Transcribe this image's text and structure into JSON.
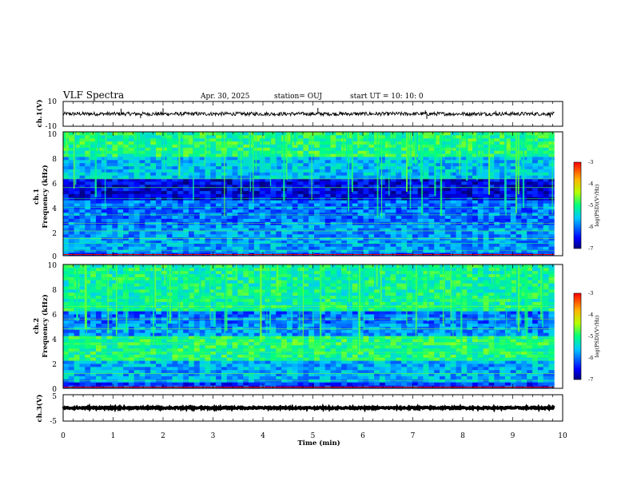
{
  "header": {
    "title": "VLF Spectra",
    "date": "Apr. 30, 2025",
    "station": "station= OUJ",
    "start_ut": "start  UT  =   10: 10: 0"
  },
  "colors": {
    "trace": "#000000",
    "colormap_low": "#00007f",
    "colormap_mid": "#00ff7f",
    "colormap_high": "#ff0000",
    "spectrogram_floor": "#000000"
  },
  "chart_data": [
    {
      "type": "line",
      "id": "ch1-waveform",
      "ylabel": "ch.1(V)",
      "ylim": [
        -10,
        10
      ],
      "ytick_labels": [
        "10",
        "-10"
      ],
      "xlim": [
        0,
        10
      ],
      "baseline": 0,
      "noise_amplitude": 1.5,
      "spikes": [
        {
          "x": 1.16,
          "y": 4.2
        },
        {
          "x": 1.55,
          "y": -3.5
        },
        {
          "x": 2.0,
          "y": 4.5
        },
        {
          "x": 5.1,
          "y": 4.8
        },
        {
          "x": 7.25,
          "y": 2.8
        },
        {
          "x": 7.28,
          "y": -4.0
        },
        {
          "x": 8.66,
          "y": 2.5
        },
        {
          "x": 9.75,
          "y": -3.0
        }
      ],
      "data_end_x": 9.83
    },
    {
      "type": "heatmap",
      "id": "ch1-spectrogram",
      "ylabel_line1": "ch.1",
      "ylabel_line2": "Frequency (kHz)",
      "ylim": [
        0,
        10
      ],
      "ytick_labels": [
        "0",
        "2",
        "4",
        "6",
        "8",
        "10"
      ],
      "xlim": [
        0,
        10
      ],
      "data_end_x": 9.83,
      "colorbar": {
        "label": "log(PSD)(V²/Hz)",
        "ticks": [
          "-3",
          "-4",
          "-5",
          "-6",
          "-7"
        ],
        "range": [
          -7,
          -3
        ]
      },
      "bands": [
        {
          "f": [
            0,
            0.3
          ],
          "level": -6.2
        },
        {
          "f": [
            0.3,
            2.5
          ],
          "level": -5.8
        },
        {
          "f": [
            2.5,
            4.6
          ],
          "level": -6.0
        },
        {
          "f": [
            4.6,
            6.3
          ],
          "level": -6.6
        },
        {
          "f": [
            6.3,
            8.0
          ],
          "level": -5.6
        },
        {
          "f": [
            8.0,
            10.0
          ],
          "level": -5.0
        }
      ],
      "lines_khz": [
        0.4,
        1.0,
        1.4,
        2.0,
        2.6,
        3.3,
        3.9,
        4.6,
        5.5,
        6.2
      ]
    },
    {
      "type": "heatmap",
      "id": "ch2-spectrogram",
      "ylabel_line1": "ch.2",
      "ylabel_line2": "Frequency (kHz)",
      "ylim": [
        0,
        10
      ],
      "ytick_labels": [
        "0",
        "2",
        "4",
        "6",
        "8",
        "10"
      ],
      "xlim": [
        0,
        10
      ],
      "data_end_x": 9.83,
      "colorbar": {
        "label": "log(PSD)(V²/Hz)",
        "ticks": [
          "-3",
          "-4",
          "-5",
          "-6",
          "-7"
        ],
        "range": [
          -7,
          -3
        ]
      },
      "bands": [
        {
          "f": [
            0,
            0.5
          ],
          "level": -6.3
        },
        {
          "f": [
            0.5,
            2.2
          ],
          "level": -5.7
        },
        {
          "f": [
            2.2,
            4.2
          ],
          "level": -5.0
        },
        {
          "f": [
            4.2,
            5.2
          ],
          "level": -5.8
        },
        {
          "f": [
            5.2,
            6.3
          ],
          "level": -6.0
        },
        {
          "f": [
            6.3,
            10.0
          ],
          "level": -5.1
        }
      ],
      "lines_khz": [
        0.6,
        1.2,
        2.3,
        2.9,
        3.6,
        4.1,
        4.8,
        5.6,
        6.6,
        7.3
      ]
    },
    {
      "type": "line",
      "id": "ch3-waveform",
      "ylabel": "ch.3(V)",
      "ylim": [
        -5,
        5
      ],
      "ytick_labels": [
        "5",
        "-5"
      ],
      "xlim": [
        0,
        10
      ],
      "baseline": 0,
      "noise_amplitude": 0.3,
      "data_end_x": 9.83
    }
  ],
  "x_axis": {
    "label": "Time  (min)",
    "ticks": [
      "0",
      "1",
      "2",
      "3",
      "4",
      "5",
      "6",
      "7",
      "8",
      "9",
      "10"
    ]
  }
}
